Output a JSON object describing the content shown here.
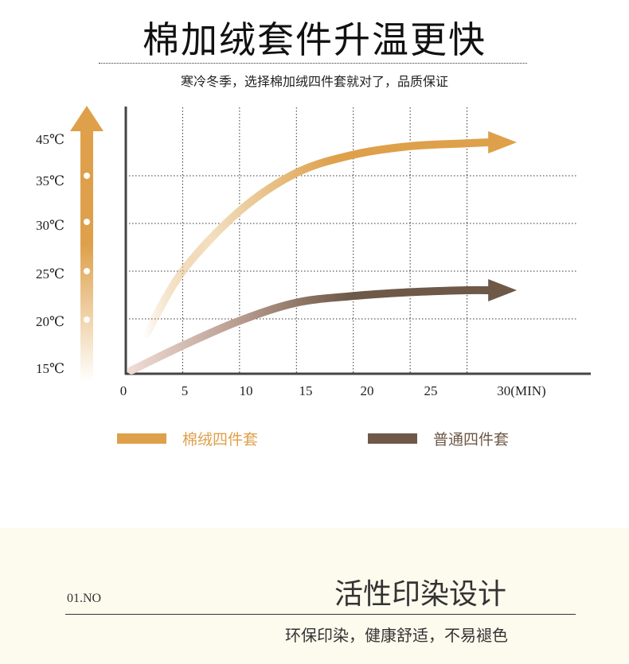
{
  "header": {
    "title": "棉加绒套件升温更快",
    "subtitle": "寒冷冬季，选择棉加绒四件套就对了，品质保证"
  },
  "chart_data": {
    "type": "line",
    "title": "",
    "xlabel": "",
    "ylabel": "",
    "x_ticks": [
      "0",
      "5",
      "10",
      "15",
      "20",
      "25",
      "30(MIN)"
    ],
    "y_ticks": [
      "15℃",
      "20℃",
      "25℃",
      "30℃",
      "35℃",
      "45℃"
    ],
    "grid": true,
    "legend_placement": "bottom",
    "series": [
      {
        "name": "棉绒四件套",
        "color": "#dea04a",
        "x": [
          1.8,
          5,
          10,
          15,
          20,
          25,
          30,
          32
        ],
        "y": [
          18.4,
          25,
          31.3,
          35.3,
          37.2,
          38.1,
          38.4,
          38.5
        ]
      },
      {
        "name": "普通四件套",
        "color": "#6e5848",
        "x": [
          0.5,
          5,
          10,
          15,
          20,
          25,
          30,
          32
        ],
        "y": [
          14.6,
          17.2,
          19.8,
          21.7,
          22.4,
          22.8,
          23.0,
          23.0
        ]
      }
    ],
    "axis_arrow_color": "#dea04a"
  },
  "legend": [
    {
      "label": "棉绒四件套",
      "color": "#dea04a"
    },
    {
      "label": "普通四件套",
      "color": "#6e5848"
    }
  ],
  "section": {
    "number": "01.NO",
    "title": "活性印染设计",
    "subtitle": "环保印染，健康舒适，不易褪色",
    "background": "#fdfbee"
  }
}
